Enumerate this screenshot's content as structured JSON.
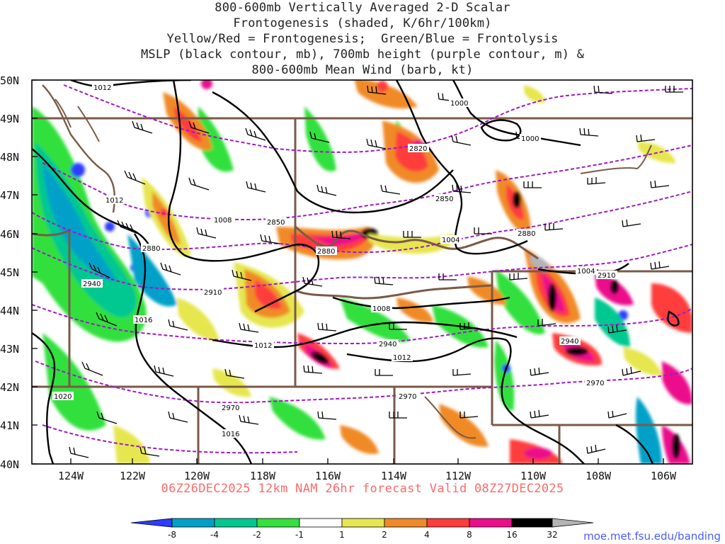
{
  "title_lines": [
    "800-600mb Vertically Averaged 2-D Scalar",
    "Frontogenesis (shaded, K/6hr/100km)",
    "Yellow/Red = Frontogenesis;  Green/Blue = Frontolysis",
    "MSLP (black contour, mb), 700mb height (purple contour, m) &",
    "800-600mb Mean Wind (barb, kt)"
  ],
  "lat_labels": [
    "50N",
    "49N",
    "48N",
    "47N",
    "46N",
    "45N",
    "44N",
    "43N",
    "42N",
    "41N",
    "40N"
  ],
  "lon_labels": [
    "124W",
    "122W",
    "120W",
    "118W",
    "116W",
    "114W",
    "112W",
    "110W",
    "108W",
    "106W"
  ],
  "mslp_labels": [
    "1012",
    "1000",
    "1000",
    "1012",
    "1008",
    "1004",
    "1004",
    "1008",
    "1016",
    "1012",
    "1012",
    "1020",
    "1016"
  ],
  "height_labels": [
    "2820",
    "2850",
    "2850",
    "2880",
    "2880",
    "2880",
    "2910",
    "2910",
    "2940",
    "2940",
    "2940",
    "2970",
    "2970",
    "2970"
  ],
  "footer": "06Z26DEC2025 12km NAM 26hr forecast Valid 08Z27DEC2025",
  "url": "moe.met.fsu.edu/banding",
  "colorbar": {
    "labels": [
      "-8",
      "-4",
      "-2",
      "-1",
      "1",
      "2",
      "4",
      "8",
      "16",
      "32"
    ],
    "colors": [
      "#2e3cff",
      "#00a0c8",
      "#00c890",
      "#33e03c",
      "#ffffff",
      "#e6e650",
      "#f08a28",
      "#ff3c3c",
      "#ec0e8c",
      "#000000",
      "#b4b4b4"
    ]
  },
  "colors": {
    "mslp": "#000000",
    "height": "#a018c8",
    "border": "#7a5a48",
    "footer": "#ff6a6a",
    "url": "#4a5cff"
  }
}
